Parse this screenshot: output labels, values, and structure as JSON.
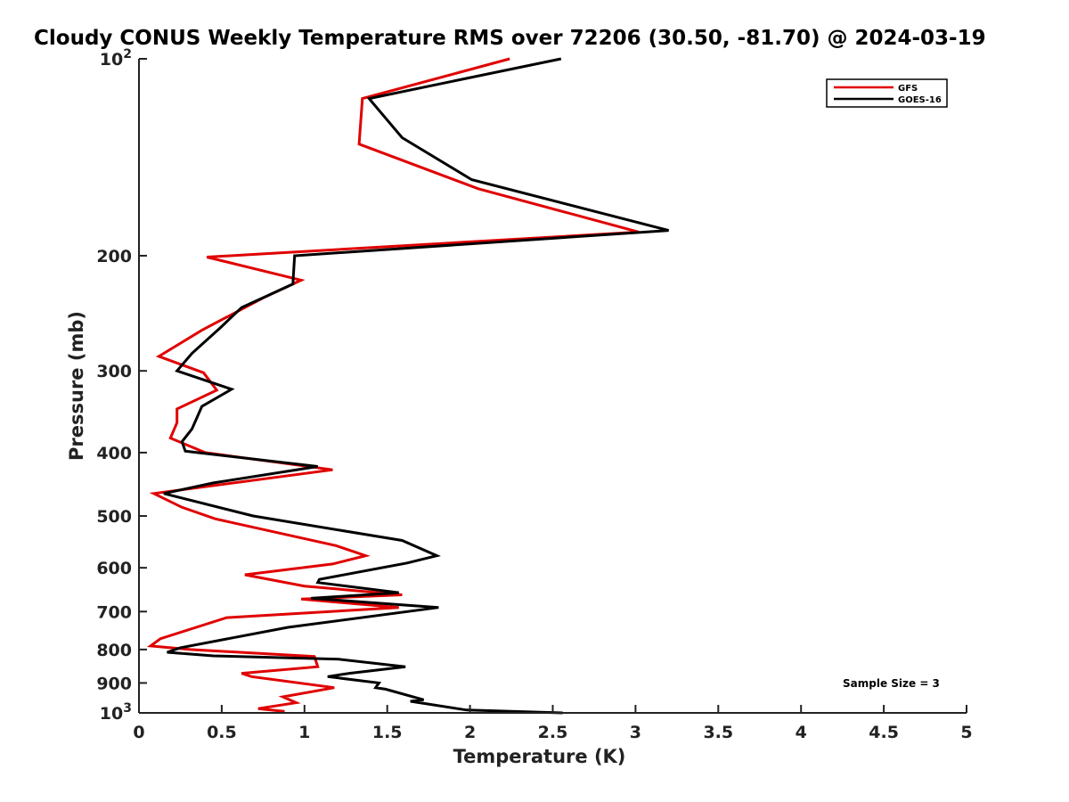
{
  "chart_data": {
    "type": "line",
    "title": "Cloudy CONUS Weekly Temperature RMS over 72206 (30.50, -81.70) @ 2024-03-19",
    "xlabel": "Temperature (K)",
    "ylabel": "Pressure (mb)",
    "xlim": [
      0,
      5
    ],
    "ylim": [
      100,
      1000
    ],
    "y_scale": "log",
    "y_reversed": true,
    "x_ticks": [
      "0",
      "0.5",
      "1",
      "1.5",
      "2",
      "2.5",
      "3",
      "3.5",
      "4",
      "4.5",
      "5"
    ],
    "y_ticks": [
      {
        "value": 100,
        "base": "10",
        "exp": "2"
      },
      {
        "value": 200,
        "label": "200"
      },
      {
        "value": 300,
        "label": "300"
      },
      {
        "value": 400,
        "label": "400"
      },
      {
        "value": 500,
        "label": "500"
      },
      {
        "value": 600,
        "label": "600"
      },
      {
        "value": 700,
        "label": "700"
      },
      {
        "value": 800,
        "label": "800"
      },
      {
        "value": 900,
        "label": "900"
      },
      {
        "value": 1000,
        "base": "10",
        "exp": "3"
      }
    ],
    "grid": false,
    "legend_position": "top-right",
    "annotation": "Sample Size = 3",
    "series": [
      {
        "name": "GFS",
        "color": "#e00000",
        "points": [
          [
            2.24,
            100
          ],
          [
            1.35,
            115
          ],
          [
            1.33,
            135
          ],
          [
            2.05,
            158
          ],
          [
            3.02,
            184
          ],
          [
            0.41,
            201
          ],
          [
            0.98,
            218
          ],
          [
            0.75,
            232
          ],
          [
            0.38,
            260
          ],
          [
            0.12,
            285
          ],
          [
            0.39,
            302
          ],
          [
            0.47,
            321
          ],
          [
            0.23,
            343
          ],
          [
            0.23,
            360
          ],
          [
            0.19,
            380
          ],
          [
            0.4,
            400
          ],
          [
            1.17,
            425
          ],
          [
            0.09,
            462
          ],
          [
            0.26,
            485
          ],
          [
            0.46,
            505
          ],
          [
            1.19,
            555
          ],
          [
            1.37,
            575
          ],
          [
            1.17,
            592
          ],
          [
            0.64,
            615
          ],
          [
            1.0,
            640
          ],
          [
            1.59,
            660
          ],
          [
            0.98,
            670
          ],
          [
            1.57,
            690
          ],
          [
            0.53,
            715
          ],
          [
            0.13,
            770
          ],
          [
            0.07,
            790
          ],
          [
            0.31,
            800
          ],
          [
            1.06,
            820
          ],
          [
            1.08,
            850
          ],
          [
            0.62,
            870
          ],
          [
            0.68,
            880
          ],
          [
            1.18,
            915
          ],
          [
            0.87,
            945
          ],
          [
            0.95,
            965
          ],
          [
            0.72,
            985
          ],
          [
            0.88,
            995
          ]
        ]
      },
      {
        "name": "GOES-16",
        "color": "#000000",
        "points": [
          [
            2.55,
            100
          ],
          [
            1.39,
            115
          ],
          [
            1.59,
            132
          ],
          [
            2.01,
            153
          ],
          [
            3.2,
            183
          ],
          [
            0.94,
            200
          ],
          [
            0.93,
            221
          ],
          [
            0.62,
            240
          ],
          [
            0.49,
            258
          ],
          [
            0.32,
            282
          ],
          [
            0.23,
            300
          ],
          [
            0.56,
            320
          ],
          [
            0.38,
            340
          ],
          [
            0.32,
            368
          ],
          [
            0.26,
            385
          ],
          [
            0.28,
            398
          ],
          [
            1.08,
            420
          ],
          [
            0.45,
            445
          ],
          [
            0.15,
            462
          ],
          [
            0.69,
            500
          ],
          [
            1.59,
            545
          ],
          [
            1.8,
            575
          ],
          [
            1.62,
            590
          ],
          [
            1.09,
            625
          ],
          [
            1.08,
            632
          ],
          [
            1.57,
            655
          ],
          [
            1.04,
            668
          ],
          [
            1.81,
            690
          ],
          [
            0.9,
            740
          ],
          [
            0.25,
            795
          ],
          [
            0.17,
            808
          ],
          [
            0.45,
            818
          ],
          [
            1.21,
            828
          ],
          [
            1.61,
            850
          ],
          [
            1.27,
            870
          ],
          [
            1.14,
            880
          ],
          [
            1.45,
            900
          ],
          [
            1.43,
            915
          ],
          [
            1.49,
            920
          ],
          [
            1.72,
            955
          ],
          [
            1.64,
            960
          ],
          [
            1.98,
            990
          ],
          [
            2.56,
            1000
          ]
        ]
      }
    ]
  }
}
